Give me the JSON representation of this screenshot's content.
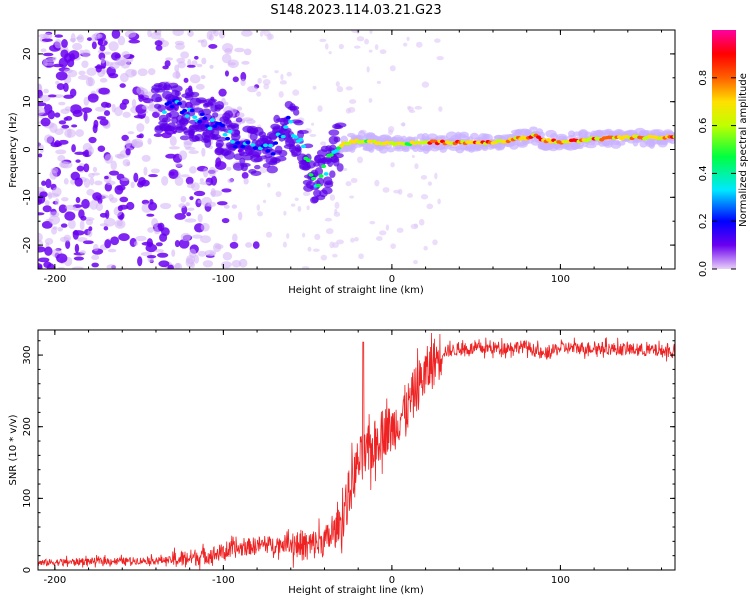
{
  "title": "S148.2023.114.03.21.G23",
  "chart_data": [
    {
      "type": "heatmap",
      "xlabel": "Height of straight line (km)",
      "ylabel": "Frequency (Hz)",
      "xlim": [
        -210,
        168
      ],
      "ylim": [
        -25,
        25
      ],
      "xticks": [
        -200,
        -100,
        0,
        100
      ],
      "yticks": [
        -20,
        -10,
        0,
        10,
        20
      ],
      "ytick_labels": [
        "-20",
        "-10",
        "0",
        "10",
        "20"
      ],
      "colorbar": {
        "label": "Normalized spectral amplitude",
        "range": [
          0,
          1
        ],
        "ticks": [
          0.0,
          0.2,
          0.4,
          0.6,
          0.8
        ],
        "tick_labels": [
          "0.0",
          "0.2",
          "0.4",
          "0.6",
          "0.8"
        ],
        "colormap": [
          "#e8d0f8",
          "#6a00f0",
          "#0000ff",
          "#00e8ff",
          "#00ff40",
          "#c0ff00",
          "#ffe000",
          "#ff6000",
          "#ff0000",
          "#ff00a0"
        ]
      },
      "trace": {
        "x": [
          -130,
          -120,
          -110,
          -100,
          -90,
          -80,
          -70,
          -62,
          -55,
          -50,
          -45,
          -42,
          -38,
          -34,
          -30,
          -25,
          -20,
          -10,
          0,
          10,
          20,
          40,
          60,
          80,
          85,
          90,
          100,
          120,
          140,
          168
        ],
        "y": [
          9,
          7,
          6,
          4,
          1,
          -1,
          0,
          6,
          2,
          -2,
          -7,
          -6,
          -3,
          -1,
          1,
          1.5,
          1.8,
          1.5,
          1.2,
          1.3,
          1.5,
          1.5,
          1.5,
          2.5,
          3,
          2,
          1.5,
          2.2,
          2.5,
          2.5
        ]
      }
    },
    {
      "type": "line",
      "xlabel": "Height of straight line (km)",
      "ylabel": "SNR (10 * v/v)",
      "xlim": [
        -210,
        168
      ],
      "ylim": [
        0,
        335
      ],
      "xticks": [
        -200,
        -100,
        0,
        100
      ],
      "yticks": [
        0,
        100,
        200,
        300
      ],
      "series": [
        {
          "color": "#ee2222",
          "x": [
            -210,
            -180,
            -150,
            -130,
            -120,
            -110,
            -100,
            -90,
            -80,
            -70,
            -60,
            -50,
            -40,
            -35,
            -30,
            -25,
            -20,
            -15,
            -10,
            -5,
            0,
            5,
            10,
            15,
            20,
            25,
            30,
            40,
            60,
            80,
            90,
            100,
            120,
            140,
            168
          ],
          "y": [
            10,
            12,
            13,
            14,
            17,
            20,
            25,
            30,
            35,
            35,
            38,
            33,
            40,
            50,
            70,
            110,
            150,
            160,
            175,
            195,
            195,
            215,
            230,
            255,
            275,
            290,
            305,
            308,
            310,
            312,
            300,
            310,
            310,
            308,
            305
          ]
        }
      ]
    }
  ]
}
